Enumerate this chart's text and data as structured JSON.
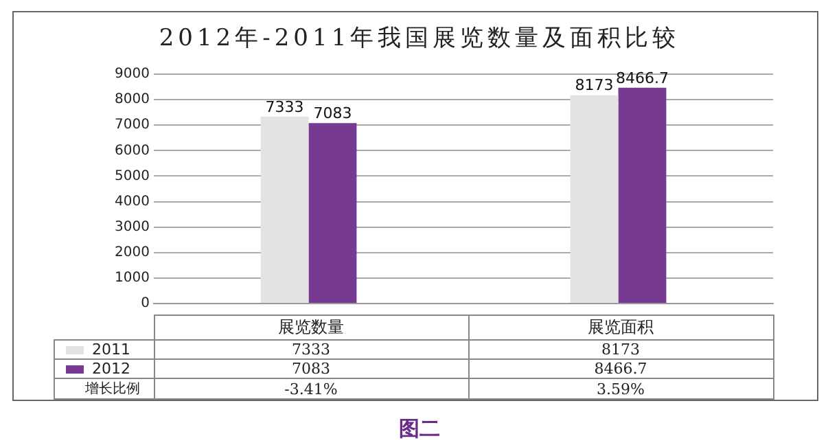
{
  "chart_data": {
    "type": "bar",
    "title": "2012年-2011年我国展览数量及面积比较",
    "categories": [
      "展览数量",
      "展览面积"
    ],
    "series": [
      {
        "name": "2011",
        "color": "#e3e3e3",
        "values": [
          7333,
          8173
        ],
        "value_labels": [
          "7333",
          "8173"
        ]
      },
      {
        "name": "2012",
        "color": "#763a92",
        "values": [
          7083,
          8466.7
        ],
        "value_labels": [
          "7083",
          "8466.7"
        ]
      }
    ],
    "ylim": [
      0,
      9000
    ],
    "yticks": [
      0,
      1000,
      2000,
      3000,
      4000,
      5000,
      6000,
      7000,
      8000,
      9000
    ],
    "grid": "y",
    "legend": "bottom",
    "data_labels": true,
    "annotations": [
      "7333",
      "8173",
      "7083",
      "8466.7",
      "增长比例",
      "-3.41%",
      "3.59%",
      "图二"
    ]
  }
}
